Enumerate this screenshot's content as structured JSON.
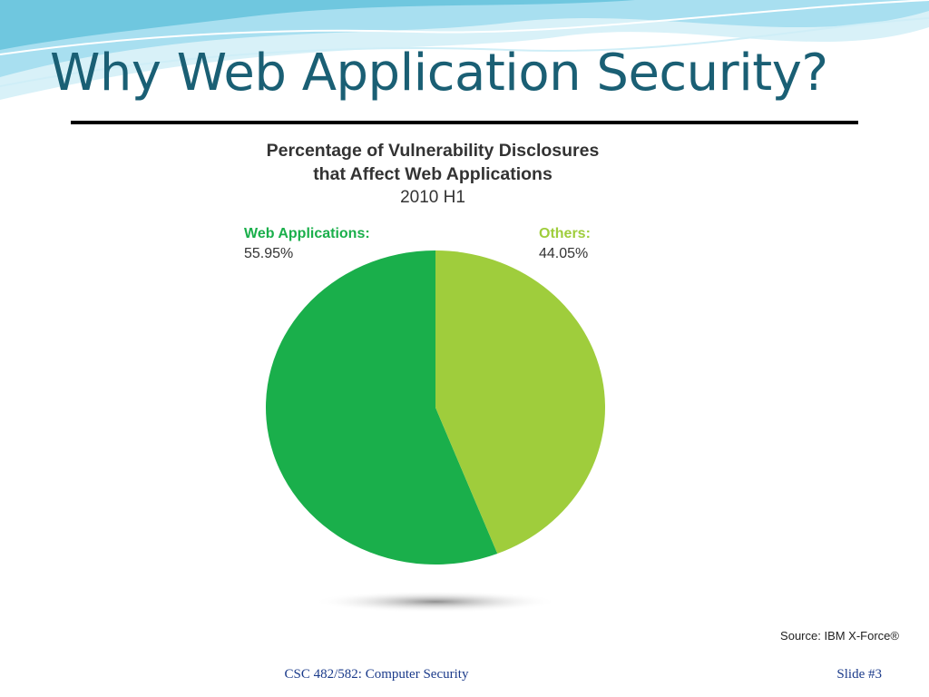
{
  "slide": {
    "title": "Why Web Application Security?",
    "footer_course": "CSC 482/582: Computer Security",
    "footer_slide": "Slide #3"
  },
  "colors": {
    "title": "#1a5f74",
    "web_applications": "#1aaf4b",
    "others": "#9fcd3c",
    "wave_light": "#bfe7f2",
    "wave_mid": "#6fc7df"
  },
  "chart_data": {
    "type": "pie",
    "title": "Percentage of Vulnerability Disclosures",
    "title_line2": "that Affect Web Applications",
    "subtitle": "2010 H1",
    "source": "Source: IBM X-Force®",
    "slices": [
      {
        "name": "Web Applications:",
        "value": 55.95,
        "label": "55.95%",
        "color": "#1aaf4b"
      },
      {
        "name": "Others:",
        "value": 44.05,
        "label": "44.05%",
        "color": "#9fcd3c"
      }
    ]
  }
}
